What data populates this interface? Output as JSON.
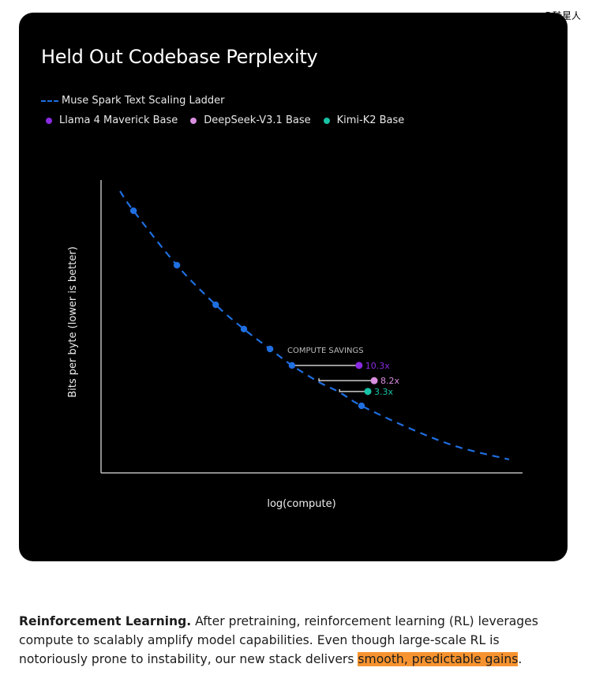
{
  "watermark": "@硅星人",
  "chart_data": {
    "type": "line",
    "title": "Held Out Codebase Perplexity",
    "xlabel": "log(compute)",
    "ylabel": "Bits per byte (lower is better)",
    "xlim": [
      0,
      100
    ],
    "ylim": [
      0,
      100
    ],
    "grid": false,
    "legend_placement": "top-left",
    "legend": [
      {
        "name": "Muse Spark Text Scaling Ladder",
        "color": "#1f6fe0",
        "style": "dashed"
      },
      {
        "name": "Llama 4 Maverick Base",
        "color": "#8a2be2"
      },
      {
        "name": "DeepSeek-V3.1 Base",
        "color": "#d98ee0"
      },
      {
        "name": "Kimi-K2 Base",
        "color": "#17c3a6"
      }
    ],
    "scaling_curve": {
      "x": [
        4.5,
        7.7,
        18.0,
        27.2,
        33.9,
        40.1,
        45.3,
        51.7,
        56.6,
        61.8,
        73.4,
        84.6,
        96.8
      ],
      "y": [
        96.2,
        89.5,
        70.9,
        57.4,
        49.1,
        42.3,
        36.7,
        31.0,
        27.5,
        22.9,
        15.1,
        8.9,
        4.6
      ]
    },
    "scaling_points": {
      "x": [
        7.7,
        18.0,
        27.2,
        33.9,
        40.1,
        45.3,
        61.8
      ],
      "y": [
        89.5,
        70.9,
        57.4,
        49.1,
        42.3,
        36.7,
        22.9
      ]
    },
    "annotation": "COMPUTE SAVINGS",
    "comparisons": [
      {
        "name": "Llama 4 Maverick Base",
        "x": 61.2,
        "y": 36.7,
        "ladder_x": 45.3,
        "label": "10.3x",
        "color": "#8a2be2"
      },
      {
        "name": "DeepSeek-V3.1 Base",
        "x": 64.8,
        "y": 31.5,
        "ladder_x": 51.7,
        "label": "8.2x",
        "color": "#d98ee0"
      },
      {
        "name": "Kimi-K2 Base",
        "x": 63.3,
        "y": 27.8,
        "ladder_x": 56.6,
        "label": "3.3x",
        "color": "#17c3a6"
      }
    ]
  },
  "paragraph": {
    "lead": "Reinforcement Learning.",
    "text": " After pretraining, reinforcement learning (RL) leverages compute to scalably amplify model capabilities. Even though large-scale RL is notoriously prone to instability, our new stack delivers ",
    "highlight": "smooth, predictable gains",
    "end": ".",
    "highlight_color": "#f7932f"
  }
}
